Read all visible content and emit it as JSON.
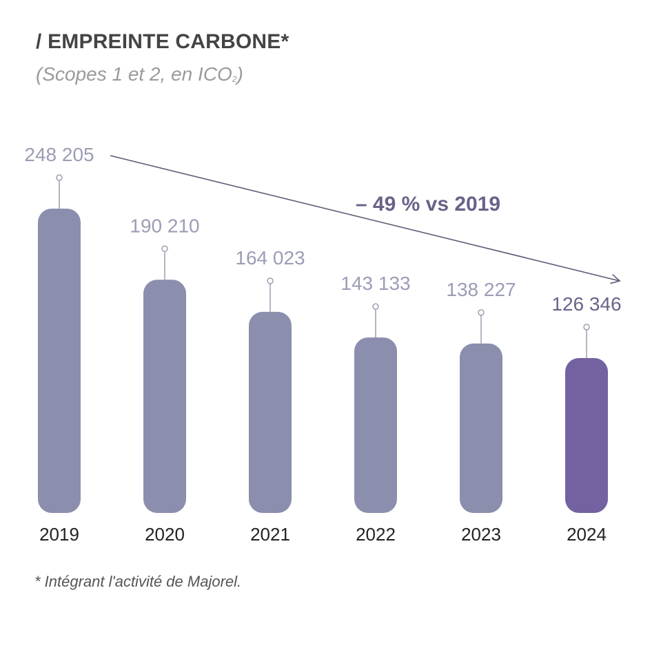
{
  "title_prefix": "/ ",
  "title": "EMPREINTE CARBONE*",
  "subtitle_main": "(Scopes 1 et 2, en ICO",
  "subtitle_sub": "2",
  "subtitle_end": ")",
  "footnote": "* Intégrant l'activité de Majorel.",
  "colors": {
    "bar": "#8b8fad",
    "bar_highlight": "#7462a0",
    "label": "#9b9db5",
    "label_highlight": "#6b6188",
    "stem": "#9c9eb0",
    "trend": "#5e5a76"
  },
  "chart_data": {
    "type": "bar",
    "title": "EMPREINTE CARBONE*",
    "subtitle": "(Scopes 1 et 2, en ICO2)",
    "categories": [
      "2019",
      "2020",
      "2021",
      "2022",
      "2023",
      "2024"
    ],
    "values": [
      248205,
      190210,
      164023,
      143133,
      138227,
      126346
    ],
    "value_labels": [
      "248 205",
      "190 210",
      "164 023",
      "143 133",
      "138 227",
      "126 346"
    ],
    "highlight_index": 5,
    "annotation": "– 49 % vs 2019",
    "ylim": [
      0,
      248205
    ],
    "grid": false,
    "legend": "none"
  }
}
